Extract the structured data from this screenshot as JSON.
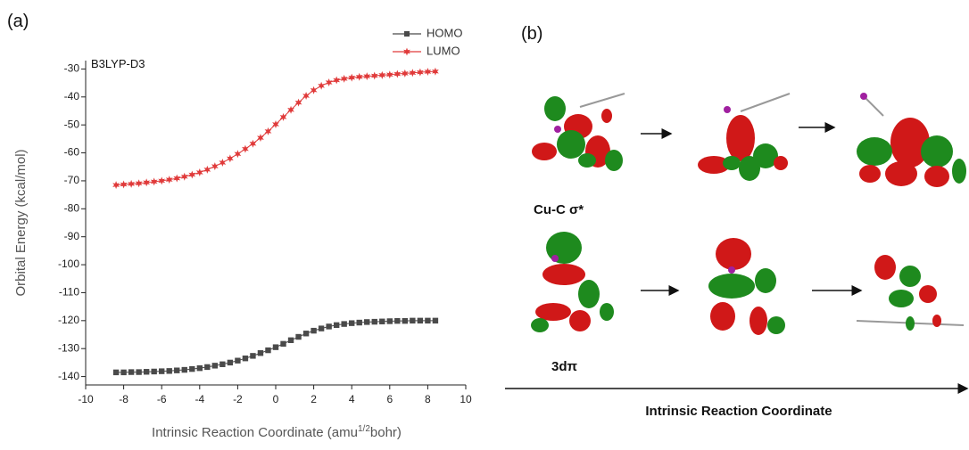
{
  "chart_data": {
    "type": "scatter-line",
    "panel_label": "(a)",
    "annotation": "B3LYP-D3",
    "y_label": "Orbital Energy (kcal/mol)",
    "x_label": [
      "Intrinsic Reaction Coordinate (amu",
      "1/2",
      "bohr)"
    ],
    "xlim": [
      -10,
      10
    ],
    "xticks": [
      -10,
      -8,
      -6,
      -4,
      -2,
      0,
      2,
      4,
      6,
      8,
      10
    ],
    "ylim": [
      -143,
      -27
    ],
    "yticks": [
      -30,
      -40,
      -50,
      -60,
      -70,
      -80,
      -90,
      -100,
      -110,
      -120,
      -130,
      -140
    ],
    "grid": false,
    "legend": "top-right",
    "x": [
      -8.4,
      -8.0,
      -7.6,
      -7.2,
      -6.8,
      -6.4,
      -6.0,
      -5.6,
      -5.2,
      -4.8,
      -4.4,
      -4.0,
      -3.6,
      -3.2,
      -2.8,
      -2.4,
      -2.0,
      -1.6,
      -1.2,
      -0.8,
      -0.4,
      0,
      0.4,
      0.8,
      1.2,
      1.6,
      2.0,
      2.4,
      2.8,
      3.2,
      3.6,
      4.0,
      4.4,
      4.8,
      5.2,
      5.6,
      6.0,
      6.4,
      6.8,
      7.2,
      7.6,
      8.0,
      8.4
    ],
    "series": [
      {
        "name": "HOMO",
        "color": "#4a4a4a",
        "marker": "square",
        "values": [
          -138.5,
          -138.5,
          -138.4,
          -138.4,
          -138.3,
          -138.2,
          -138.1,
          -138.0,
          -137.8,
          -137.6,
          -137.3,
          -137.0,
          -136.6,
          -136.1,
          -135.6,
          -135.0,
          -134.3,
          -133.5,
          -132.6,
          -131.6,
          -130.6,
          -129.5,
          -128.3,
          -127.0,
          -125.8,
          -124.6,
          -123.6,
          -122.8,
          -122.1,
          -121.6,
          -121.2,
          -120.9,
          -120.7,
          -120.5,
          -120.4,
          -120.3,
          -120.2,
          -120.1,
          -120.1,
          -120.0,
          -120.0,
          -120.0,
          -120.0
        ]
      },
      {
        "name": "LUMO",
        "color": "#e03a3a",
        "marker": "star",
        "values": [
          -71.5,
          -71.3,
          -71.1,
          -70.9,
          -70.6,
          -70.3,
          -70.0,
          -69.6,
          -69.1,
          -68.5,
          -67.8,
          -67.0,
          -66.0,
          -64.8,
          -63.5,
          -62.0,
          -60.4,
          -58.6,
          -56.7,
          -54.6,
          -52.3,
          -49.8,
          -47.2,
          -44.6,
          -42.0,
          -39.6,
          -37.6,
          -36.0,
          -34.8,
          -34.0,
          -33.5,
          -33.1,
          -32.8,
          -32.6,
          -32.4,
          -32.2,
          -32.0,
          -31.8,
          -31.6,
          -31.4,
          -31.2,
          -31.0,
          -30.9
        ]
      }
    ]
  },
  "panel_b": {
    "panel_label": "(b)",
    "row_labels": [
      "Cu-C σ*",
      "3dπ"
    ],
    "axis_label": "Intrinsic Reaction Coordinate"
  }
}
